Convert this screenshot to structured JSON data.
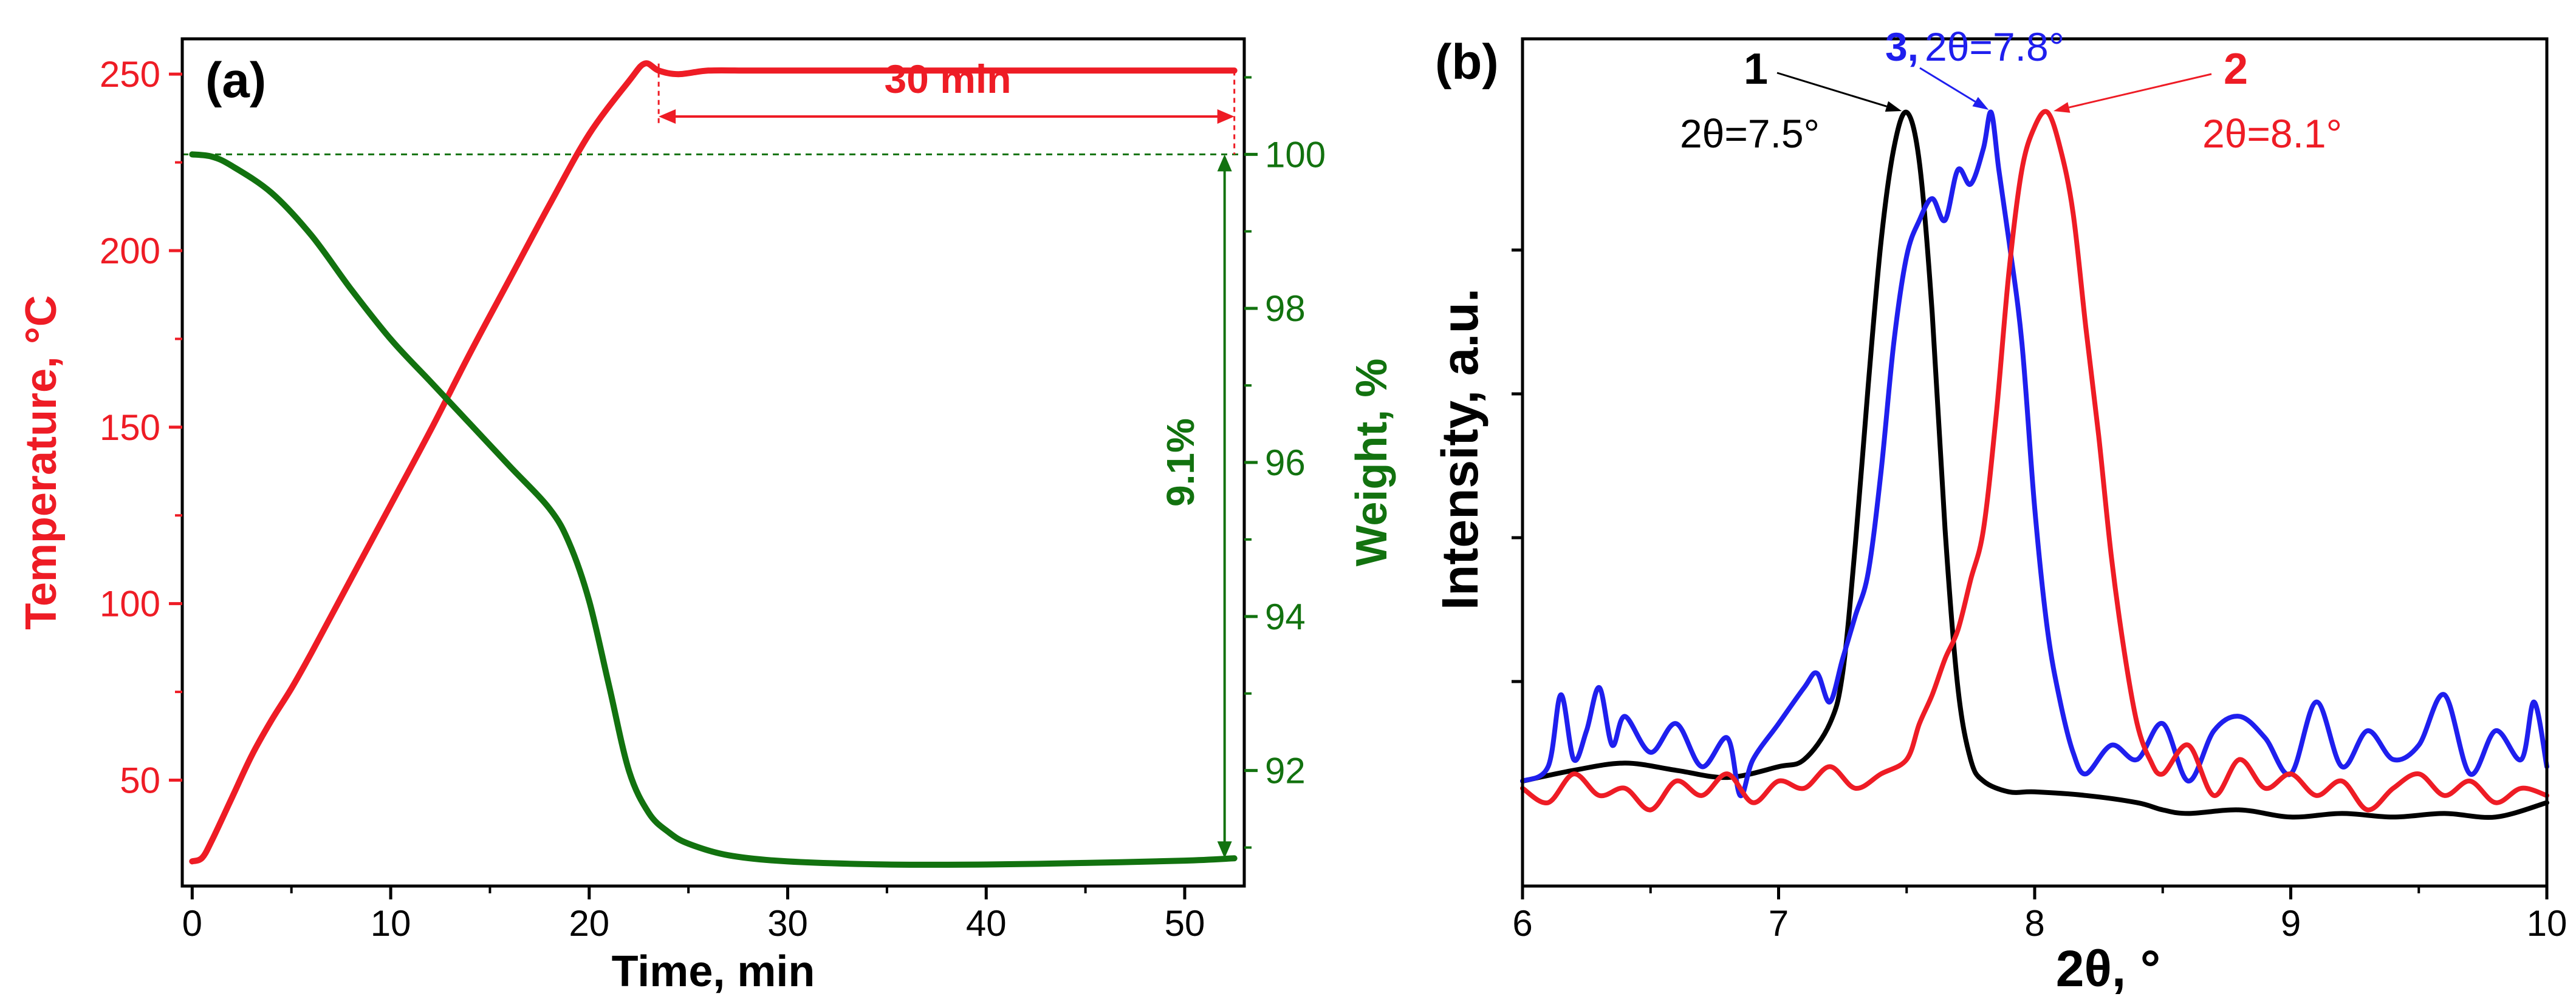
{
  "colors": {
    "temperature": "#ee1c25",
    "weight": "#12720f",
    "black": "#000000",
    "blue": "#1f1fee",
    "red": "#ee1c25"
  },
  "chart_data": [
    {
      "panel_label": "(a)",
      "type": "line",
      "xlabel": "Time, min",
      "ylabel_left": "Temperature, °C",
      "ylabel_right": "Weight, %",
      "xlim": [
        -0.5,
        53
      ],
      "ylim_left": [
        20,
        260
      ],
      "ylim_right": [
        90.5,
        101.5
      ],
      "x_ticks": [
        "0",
        "10",
        "20",
        "30",
        "40",
        "50"
      ],
      "y_left_ticks": [
        "50",
        "100",
        "150",
        "200",
        "250"
      ],
      "y_right_ticks": [
        "92",
        "94",
        "96",
        "98",
        "100"
      ],
      "annotations": {
        "hold_time": "30 min",
        "weight_loss": "9.1%"
      },
      "series": [
        {
          "name": "Temperature",
          "axis": "left",
          "x": [
            0,
            0.5,
            1,
            2,
            3,
            4,
            5,
            6,
            8,
            10,
            12,
            14,
            16,
            18,
            20,
            22,
            22.8,
            23.5,
            24.5,
            26,
            28,
            30,
            35,
            40,
            45,
            50,
            52.5
          ],
          "y": [
            27,
            28,
            33,
            45,
            57,
            67,
            76,
            86,
            107,
            128,
            149,
            171,
            192,
            213,
            233,
            248,
            253,
            251,
            250,
            251,
            251,
            251,
            251,
            251,
            251,
            251,
            251
          ]
        },
        {
          "name": "Weight",
          "axis": "right",
          "x": [
            0,
            1,
            2,
            4,
            6,
            8,
            10,
            12,
            14,
            16,
            18,
            19,
            20,
            21,
            22,
            23,
            24,
            25,
            27,
            30,
            35,
            40,
            45,
            50,
            52.5
          ],
          "y": [
            100,
            99.97,
            99.85,
            99.5,
            98.95,
            98.25,
            97.6,
            97.05,
            96.5,
            95.95,
            95.4,
            94.95,
            94.2,
            93.1,
            92.0,
            91.45,
            91.2,
            91.05,
            90.9,
            90.82,
            90.78,
            90.78,
            90.8,
            90.83,
            90.86
          ]
        }
      ]
    },
    {
      "panel_label": "(b)",
      "type": "line",
      "xlabel": "2θ, °",
      "ylabel": "Intensity, a.u.",
      "xlim": [
        6,
        10
      ],
      "ylim": [
        0,
        1
      ],
      "x_ticks": [
        "6",
        "7",
        "8",
        "9",
        "10"
      ],
      "series": [
        {
          "name": "1",
          "peak_label": "2θ=7.5°",
          "x": [
            6.0,
            6.2,
            6.4,
            6.6,
            6.8,
            7.0,
            7.1,
            7.2,
            7.25,
            7.3,
            7.35,
            7.4,
            7.45,
            7.5,
            7.55,
            7.6,
            7.65,
            7.7,
            7.75,
            7.8,
            7.9,
            8.0,
            8.2,
            8.4,
            8.5,
            8.6,
            8.8,
            9.0,
            9.2,
            9.4,
            9.6,
            9.8,
            10.0
          ],
          "y": [
            0.07,
            0.085,
            0.095,
            0.085,
            0.075,
            0.09,
            0.1,
            0.15,
            0.22,
            0.4,
            0.62,
            0.82,
            0.95,
            1.0,
            0.93,
            0.72,
            0.42,
            0.2,
            0.1,
            0.07,
            0.055,
            0.055,
            0.05,
            0.04,
            0.03,
            0.025,
            0.03,
            0.02,
            0.025,
            0.02,
            0.025,
            0.02,
            0.04
          ]
        },
        {
          "name": "2",
          "peak_label": "2θ=8.1°",
          "x": [
            6.0,
            6.1,
            6.2,
            6.3,
            6.4,
            6.5,
            6.6,
            6.7,
            6.8,
            6.9,
            7.0,
            7.1,
            7.2,
            7.3,
            7.4,
            7.5,
            7.55,
            7.6,
            7.65,
            7.7,
            7.75,
            7.8,
            7.85,
            7.9,
            7.95,
            8.0,
            8.05,
            8.1,
            8.15,
            8.2,
            8.25,
            8.3,
            8.35,
            8.4,
            8.45,
            8.5,
            8.6,
            8.7,
            8.8,
            8.9,
            9.0,
            9.1,
            9.2,
            9.3,
            9.4,
            9.5,
            9.6,
            9.7,
            9.8,
            9.9,
            10.0
          ],
          "y": [
            0.06,
            0.04,
            0.08,
            0.05,
            0.06,
            0.03,
            0.07,
            0.05,
            0.08,
            0.04,
            0.07,
            0.06,
            0.09,
            0.06,
            0.08,
            0.1,
            0.15,
            0.19,
            0.24,
            0.28,
            0.35,
            0.42,
            0.58,
            0.78,
            0.92,
            0.98,
            1.0,
            0.95,
            0.86,
            0.7,
            0.55,
            0.38,
            0.25,
            0.15,
            0.1,
            0.08,
            0.12,
            0.05,
            0.1,
            0.06,
            0.08,
            0.05,
            0.07,
            0.03,
            0.06,
            0.08,
            0.05,
            0.07,
            0.04,
            0.06,
            0.05
          ]
        },
        {
          "name": "3",
          "peak_label": "2θ=7.8°",
          "x": [
            6.0,
            6.1,
            6.15,
            6.2,
            6.25,
            6.3,
            6.35,
            6.4,
            6.5,
            6.6,
            6.7,
            6.8,
            6.85,
            6.9,
            7.0,
            7.1,
            7.15,
            7.2,
            7.25,
            7.3,
            7.35,
            7.4,
            7.45,
            7.5,
            7.55,
            7.6,
            7.65,
            7.7,
            7.75,
            7.8,
            7.83,
            7.86,
            7.9,
            7.95,
            8.0,
            8.05,
            8.1,
            8.15,
            8.2,
            8.3,
            8.4,
            8.5,
            8.6,
            8.7,
            8.8,
            8.9,
            9.0,
            9.1,
            9.2,
            9.3,
            9.4,
            9.5,
            9.6,
            9.7,
            9.8,
            9.9,
            9.95,
            10.0
          ],
          "y": [
            0.07,
            0.09,
            0.19,
            0.1,
            0.14,
            0.2,
            0.12,
            0.16,
            0.11,
            0.15,
            0.09,
            0.13,
            0.05,
            0.1,
            0.15,
            0.2,
            0.22,
            0.18,
            0.24,
            0.3,
            0.36,
            0.5,
            0.68,
            0.8,
            0.85,
            0.88,
            0.85,
            0.92,
            0.9,
            0.95,
            1.0,
            0.92,
            0.82,
            0.68,
            0.45,
            0.28,
            0.18,
            0.11,
            0.08,
            0.12,
            0.1,
            0.15,
            0.07,
            0.14,
            0.16,
            0.13,
            0.08,
            0.18,
            0.09,
            0.14,
            0.1,
            0.12,
            0.19,
            0.08,
            0.14,
            0.1,
            0.18,
            0.09
          ]
        }
      ]
    }
  ]
}
